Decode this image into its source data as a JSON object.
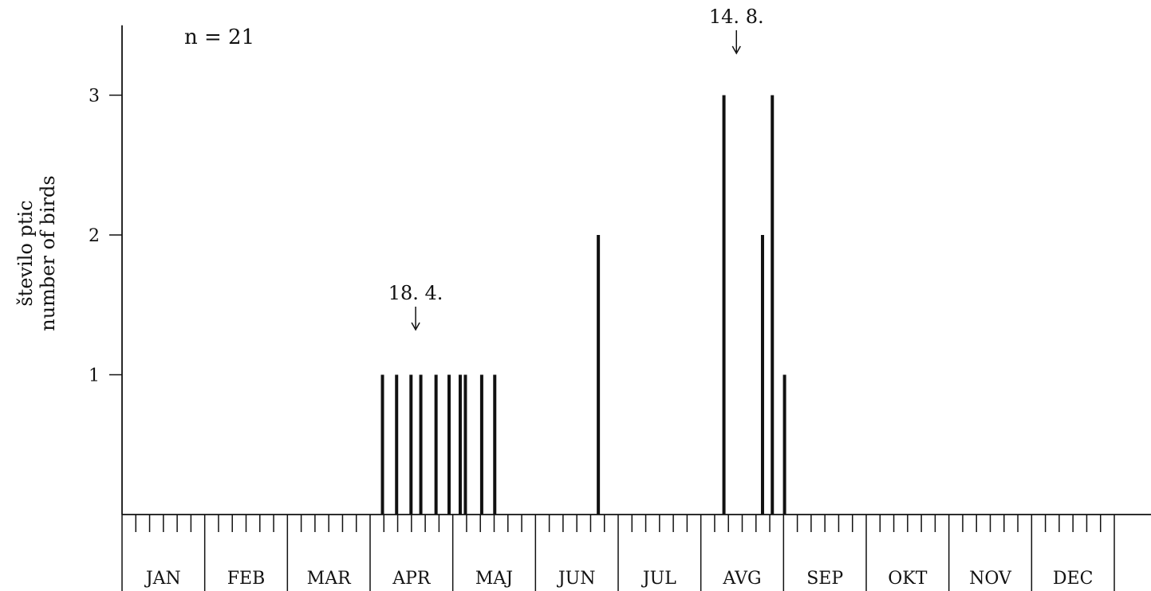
{
  "chart_data": {
    "type": "bar",
    "annotation_n": "n = 21",
    "ylabel_lines": [
      "število ptic",
      "number of birds"
    ],
    "yticks": [
      1,
      2,
      3
    ],
    "ylim": [
      0,
      3.5
    ],
    "months": [
      "JAN",
      "FEB",
      "MAR",
      "APR",
      "MAJ",
      "JUN",
      "JUL",
      "AVG",
      "SEP",
      "OKT",
      "NOV",
      "DEC"
    ],
    "xlim_days": [
      0,
      365
    ],
    "x_unit": "day of year",
    "series": [
      {
        "x": [
          95.8,
          101.0,
          106.3,
          109.9,
          115.5,
          120.3,
          124.4,
          126.3,
          132.3,
          137.1,
          175.2,
          221.4,
          235.6,
          239.2,
          243.7
        ],
        "values": [
          1,
          1,
          1,
          1,
          1,
          1,
          1,
          1,
          1,
          1,
          2,
          3,
          2,
          3,
          1
        ]
      }
    ],
    "markers": [
      {
        "label": "18. 4.",
        "x": 108
      },
      {
        "label": "14. 8.",
        "x": 226
      }
    ],
    "colors": {
      "ink": "#111111"
    }
  }
}
